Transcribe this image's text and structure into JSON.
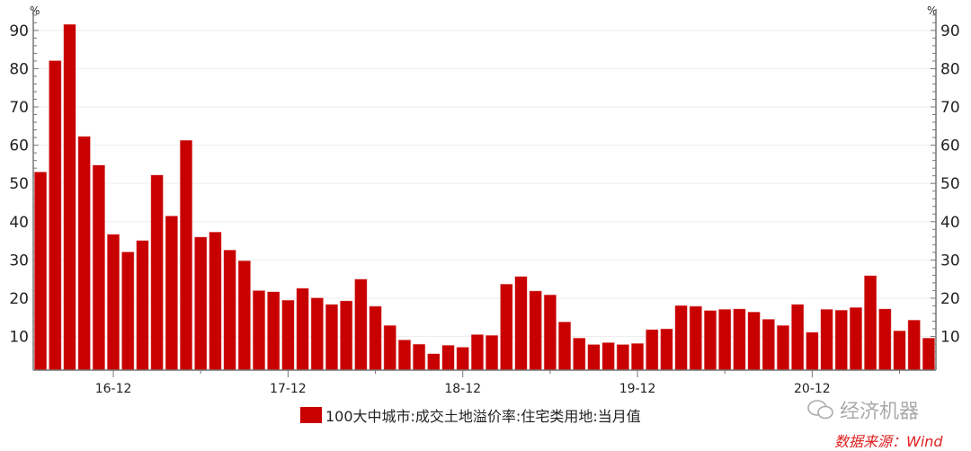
{
  "chart_data": {
    "type": "bar",
    "title": "",
    "ylabel_left": "%",
    "ylabel_right": "%",
    "ylim": [
      1.2,
      95.6
    ],
    "yticks": [
      10,
      20,
      30,
      40,
      50,
      60,
      70,
      80,
      90
    ],
    "grid": true,
    "x_tick_labels": [
      "16-12",
      "17-12",
      "18-12",
      "19-12",
      "20-12"
    ],
    "series": [
      {
        "name": "100大中城市:成交土地溢价率:住宅类用地:当月值",
        "color": "#c80000",
        "values": [
          53.0,
          82.1,
          91.6,
          62.3,
          54.8,
          36.7,
          32.1,
          35.1,
          52.2,
          41.5,
          61.3,
          36.0,
          37.3,
          32.6,
          29.8,
          22.0,
          21.7,
          19.5,
          22.6,
          20.1,
          18.4,
          19.3,
          25.0,
          17.9,
          12.9,
          9.1,
          8.0,
          5.5,
          7.7,
          7.2,
          10.5,
          10.3,
          23.7,
          25.7,
          21.9,
          20.9,
          13.8,
          9.6,
          7.9,
          8.4,
          7.9,
          8.2,
          11.8,
          12.0,
          18.1,
          17.9,
          16.8,
          17.1,
          17.2,
          16.4,
          14.5,
          12.9,
          18.4,
          11.1,
          17.1,
          16.9,
          17.6,
          25.9,
          17.2,
          11.5,
          14.3,
          9.6
        ]
      }
    ],
    "legend_position": "bottom"
  },
  "watermark": "经济机器",
  "source": "数据来源：Wind"
}
